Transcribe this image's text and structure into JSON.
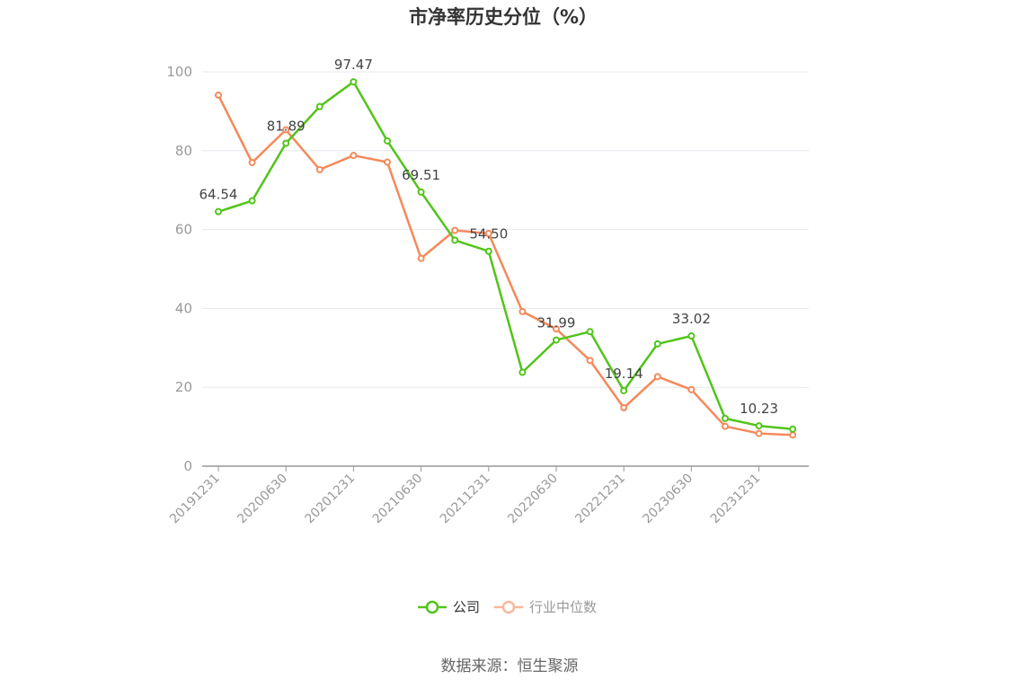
{
  "chart_data": {
    "type": "line",
    "title": "市净率历史分位（%）",
    "x": [
      "20191231",
      "20200331",
      "20200630",
      "20200930",
      "20201231",
      "20210331",
      "20210630",
      "20210930",
      "20211231",
      "20220331",
      "20220630",
      "20220930",
      "20221231",
      "20230331",
      "20230630",
      "20230930",
      "20231231",
      "20240331"
    ],
    "x_tick_labels": [
      "20191231",
      "20200630",
      "20201231",
      "20210630",
      "20211231",
      "20220630",
      "20221231",
      "20230630",
      "20231231"
    ],
    "ylim": [
      0,
      100
    ],
    "yticks": [
      "0",
      "20",
      "40",
      "60",
      "80",
      "100"
    ],
    "grid": true,
    "legend_position": "bottom",
    "series": [
      {
        "name": "公司",
        "color": "#52c41a",
        "values": [
          64.54,
          67.3,
          81.89,
          91.2,
          97.47,
          82.5,
          69.51,
          57.3,
          54.5,
          23.8,
          31.99,
          34.1,
          19.14,
          31.0,
          33.02,
          12.1,
          10.23,
          9.4
        ],
        "labels": [
          {
            "index": 0,
            "text": "64.54"
          },
          {
            "index": 2,
            "text": "81.89"
          },
          {
            "index": 4,
            "text": "97.47"
          },
          {
            "index": 6,
            "text": "69.51"
          },
          {
            "index": 8,
            "text": "54.50"
          },
          {
            "index": 10,
            "text": "31.99"
          },
          {
            "index": 12,
            "text": "19.14"
          },
          {
            "index": 14,
            "text": "33.02"
          },
          {
            "index": 16,
            "text": "10.23"
          }
        ]
      },
      {
        "name": "行业中位数",
        "color": "#f5895a",
        "values": [
          94.1,
          77.0,
          85.3,
          75.2,
          78.8,
          77.1,
          52.7,
          59.8,
          59.0,
          39.2,
          34.8,
          26.8,
          14.8,
          22.7,
          19.4,
          10.1,
          8.3,
          7.9
        ],
        "labels": []
      }
    ],
    "source": "数据来源：恒生聚源"
  }
}
